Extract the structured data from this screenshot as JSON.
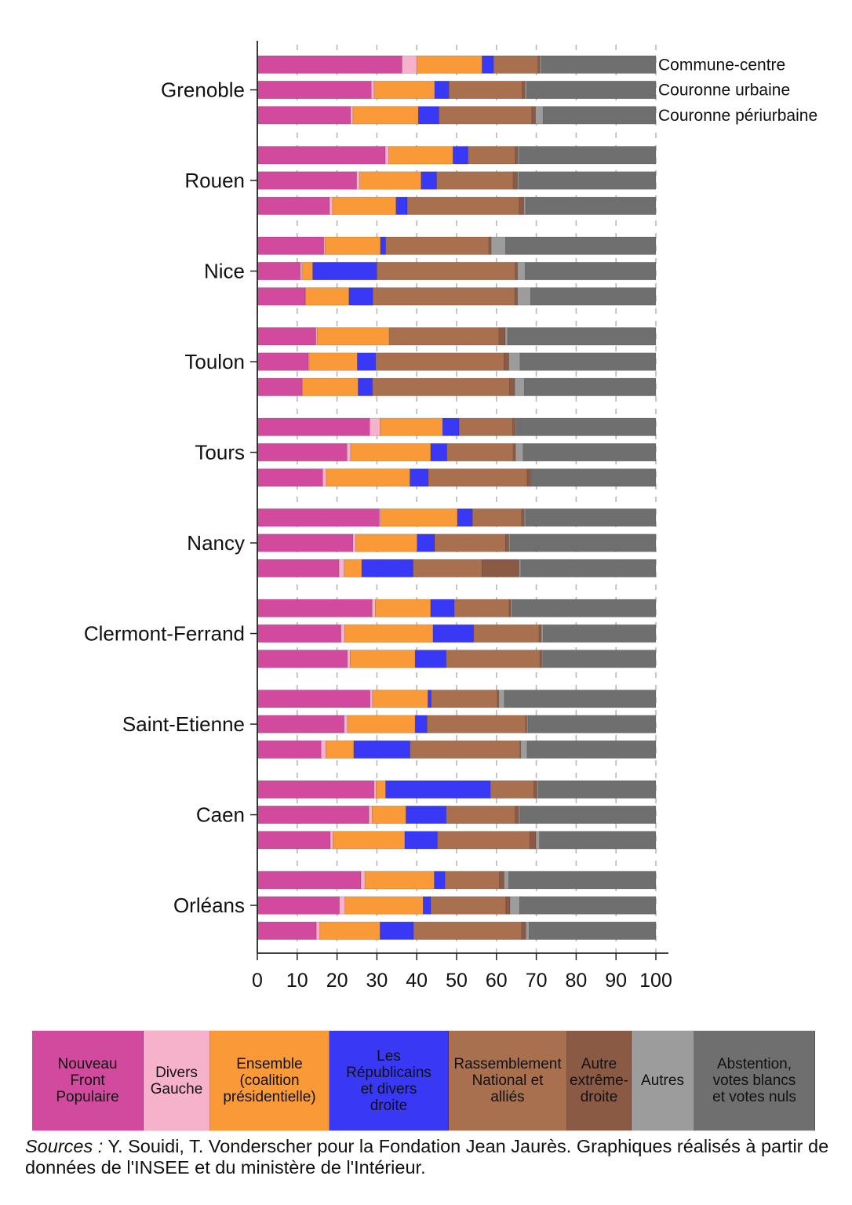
{
  "chart_data": {
    "type": "bar",
    "orientation": "horizontal",
    "stacked": true,
    "title": "",
    "xlabel": "",
    "ylabel": "",
    "xlim": [
      0,
      100
    ],
    "x_ticks": [
      "0",
      "10",
      "20",
      "30",
      "40",
      "50",
      "60",
      "70",
      "80",
      "90",
      "100"
    ],
    "grid": "vertical dashed",
    "row_labels": [
      "Commune-centre",
      "Couronne urbaine",
      "Couronne périurbaine"
    ],
    "series": [
      {
        "name": "Nouveau\nFront\nPopulaire",
        "color": "#d14a9e"
      },
      {
        "name": "Divers\nGauche",
        "color": "#f7b2cb"
      },
      {
        "name": "Ensemble\n(coalition\nprésidentielle)",
        "color": "#f99938"
      },
      {
        "name": "Les\nRépublicains\net divers\ndroite",
        "color": "#3838f5"
      },
      {
        "name": "Rassemblement\nNational et\nalliés",
        "color": "#a8704f"
      },
      {
        "name": "Autre\nextrême-\ndroite",
        "color": "#8a5a45"
      },
      {
        "name": "Autres",
        "color": "#9c9c9c"
      },
      {
        "name": "Abstention,\nvotes blancs\net votes nuls",
        "color": "#6f6f6f"
      }
    ],
    "cities": [
      {
        "name": "Grenoble",
        "rows": [
          [
            36.3,
            3.7,
            16.4,
            2.9,
            11.1,
            0.5,
            0.3,
            28.8
          ],
          [
            28.6,
            0.7,
            15.2,
            3.6,
            18.3,
            0.8,
            0.4,
            32.4
          ],
          [
            23.4,
            0.6,
            16.4,
            5.2,
            23.3,
            0.9,
            1.9,
            28.3
          ]
        ]
      },
      {
        "name": "Rouen",
        "rows": [
          [
            32.1,
            0.9,
            16.1,
            3.8,
            11.8,
            0.7,
            0.3,
            34.3
          ],
          [
            24.9,
            0.8,
            15.4,
            3.9,
            19.2,
            1.1,
            0.3,
            34.4
          ],
          [
            18.1,
            0.8,
            15.9,
            2.8,
            28.1,
            1.2,
            0.4,
            32.7
          ]
        ]
      },
      {
        "name": "Nice",
        "rows": [
          [
            16.7,
            0.3,
            13.9,
            1.3,
            25.9,
            0.6,
            3.6,
            37.7
          ],
          [
            10.8,
            0.4,
            2.7,
            16.1,
            34.7,
            0.6,
            1.9,
            32.8
          ],
          [
            12.0,
            0.1,
            10.9,
            6.0,
            35.6,
            0.7,
            3.3,
            31.4
          ]
        ]
      },
      {
        "name": "Toulon",
        "rows": [
          [
            14.7,
            0.3,
            18.1,
            0.0,
            27.5,
            1.6,
            0.6,
            37.2
          ],
          [
            12.8,
            0.2,
            12.1,
            4.6,
            32.2,
            1.2,
            2.8,
            34.1
          ],
          [
            11.2,
            0.1,
            14.0,
            3.6,
            34.4,
            1.3,
            2.4,
            33.0
          ]
        ]
      },
      {
        "name": "Tours",
        "rows": [
          [
            28.2,
            2.6,
            15.7,
            4.1,
            13.5,
            0.6,
            0.2,
            35.1
          ],
          [
            22.5,
            0.9,
            20.1,
            4.1,
            16.6,
            0.6,
            1.9,
            33.3
          ],
          [
            16.4,
            0.9,
            21.0,
            4.6,
            24.8,
            0.9,
            0.2,
            31.2
          ]
        ]
      },
      {
        "name": "Nancy",
        "rows": [
          [
            30.6,
            0.3,
            19.3,
            3.8,
            12.3,
            0.7,
            0.3,
            32.7
          ],
          [
            24.0,
            0.7,
            15.4,
            4.4,
            17.8,
            0.8,
            0.3,
            36.6
          ],
          [
            20.5,
            1.3,
            4.4,
            12.9,
            17.3,
            9.3,
            0.4,
            33.9
          ]
        ]
      },
      {
        "name": "Clermont-Ferrand",
        "rows": [
          [
            28.8,
            0.8,
            13.9,
            5.9,
            13.8,
            0.4,
            0.3,
            36.1
          ],
          [
            21.0,
            0.9,
            22.2,
            10.2,
            16.4,
            0.6,
            0.4,
            28.3
          ],
          [
            22.6,
            0.7,
            16.3,
            7.8,
            23.5,
            0.5,
            0.2,
            28.4
          ]
        ]
      },
      {
        "name": "Saint-Etienne",
        "rows": [
          [
            28.3,
            0.6,
            13.9,
            0.8,
            16.6,
            0.4,
            1.4,
            38.0
          ],
          [
            21.8,
            0.8,
            17.0,
            3.0,
            24.7,
            0.3,
            0.3,
            32.1
          ],
          [
            16.0,
            1.2,
            7.0,
            14.1,
            27.6,
            0.2,
            1.6,
            32.3
          ]
        ]
      },
      {
        "name": "Caen",
        "rows": [
          [
            29.3,
            0.5,
            2.4,
            26.3,
            10.9,
            0.8,
            0.3,
            29.5
          ],
          [
            28.0,
            0.8,
            8.5,
            10.1,
            17.3,
            0.9,
            0.3,
            34.1
          ],
          [
            18.3,
            0.7,
            18.0,
            8.2,
            23.2,
            1.5,
            0.9,
            29.2
          ]
        ]
      },
      {
        "name": "Orléans",
        "rows": [
          [
            26.0,
            1.0,
            17.4,
            2.7,
            13.6,
            1.2,
            1.2,
            36.9
          ],
          [
            20.6,
            1.4,
            19.6,
            1.9,
            18.9,
            1.0,
            2.4,
            34.2
          ],
          [
            14.8,
            0.9,
            15.1,
            8.4,
            27.1,
            1.1,
            0.8,
            31.8
          ]
        ]
      }
    ]
  },
  "source": {
    "label": "Sources :",
    "text": " Y. Souidi, T. Vonderscher pour la Fondation Jean Jaurès. Graphiques réalisés à partir de données de l'INSEE et du ministère de l'Intérieur."
  }
}
